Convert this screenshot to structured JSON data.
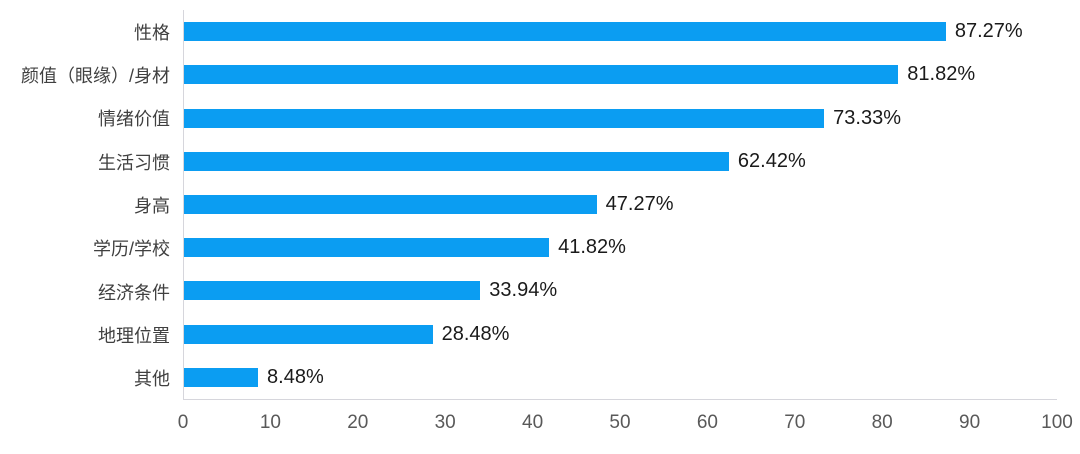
{
  "chart_data": {
    "type": "bar",
    "orientation": "horizontal",
    "title": "",
    "xlabel": "",
    "ylabel": "",
    "categories": [
      "性格",
      "颜值（眼缘）/身材",
      "情绪价值",
      "生活习惯",
      "身高",
      "学历/学校",
      "经济条件",
      "地理位置",
      "其他"
    ],
    "values": [
      87.27,
      81.82,
      73.33,
      62.42,
      47.27,
      41.82,
      33.94,
      28.48,
      8.48
    ],
    "value_labels": [
      "87.27%",
      "81.82%",
      "73.33%",
      "62.42%",
      "47.27%",
      "41.82%",
      "33.94%",
      "28.48%",
      "8.48%"
    ],
    "xlim": [
      0,
      100
    ],
    "x_ticks": [
      "0",
      "10",
      "20",
      "30",
      "40",
      "50",
      "60",
      "70",
      "80",
      "90",
      "100"
    ],
    "grid": false,
    "legend": false,
    "colors": {
      "bar": "#0b9df2",
      "axis_line": "#d6d6dc",
      "category_text": "#404040",
      "value_text": "#1a1a1a",
      "tick_text": "#595959"
    }
  }
}
